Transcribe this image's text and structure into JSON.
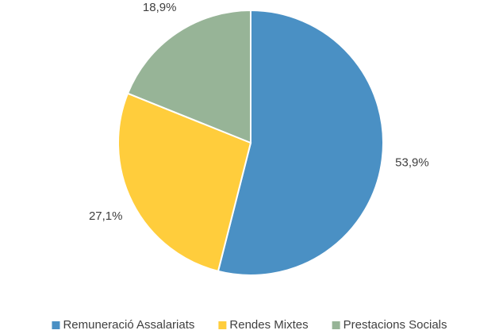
{
  "chart_data": {
    "type": "pie",
    "categories": [
      "Remuneració Assalariats",
      "Rendes Mixtes",
      "Prestacions Socials"
    ],
    "values": [
      53.9,
      27.1,
      18.9
    ],
    "value_labels": [
      "53,9%",
      "27,1%",
      "18,9%"
    ],
    "colors": [
      "#4a90c4",
      "#ffcd3c",
      "#97b497"
    ],
    "legend": "bottom"
  }
}
